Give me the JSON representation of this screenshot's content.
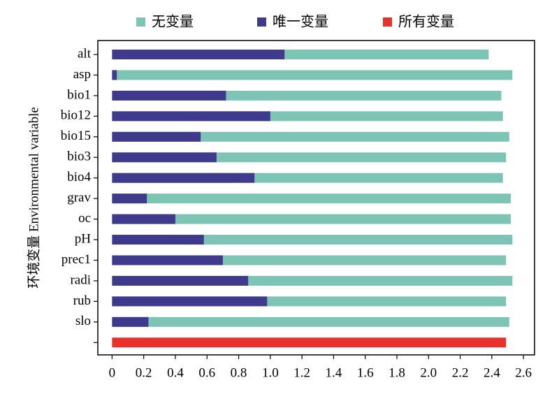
{
  "chart_data": {
    "type": "barh",
    "y_label": "环境变量 Environmental variable",
    "categories": [
      "alt",
      "asp",
      "bio1",
      "bio12",
      "bio15",
      "bio3",
      "bio4",
      "grav",
      "oc",
      "pH",
      "prec1",
      "radi",
      "rub",
      "slo",
      null
    ],
    "series": [
      {
        "name": "无变量",
        "color": "#7ec4b5",
        "values": [
          2.38,
          2.53,
          2.46,
          2.47,
          2.51,
          2.49,
          2.47,
          2.52,
          2.52,
          2.53,
          2.49,
          2.53,
          2.49,
          2.51,
          null
        ]
      },
      {
        "name": "唯一变量",
        "color": "#3f3a8c",
        "values": [
          1.09,
          0.03,
          0.72,
          1.0,
          0.56,
          0.66,
          0.9,
          0.22,
          0.4,
          0.58,
          0.7,
          0.86,
          0.98,
          0.23,
          null
        ]
      },
      {
        "name": "所有变量",
        "color": "#e8302c",
        "values": [
          null,
          null,
          null,
          null,
          null,
          null,
          null,
          null,
          null,
          null,
          null,
          null,
          null,
          null,
          2.49
        ]
      }
    ],
    "xlim": [
      -0.09,
      2.67
    ],
    "xticks": [
      0,
      0.2,
      0.4,
      0.6,
      0.8,
      {
        "value": 1,
        "label": "1.0"
      },
      1.2,
      1.4,
      1.6,
      1.8,
      {
        "value": 2,
        "label": "2.0"
      },
      2.2,
      2.4,
      2.6
    ],
    "legend": "top"
  }
}
